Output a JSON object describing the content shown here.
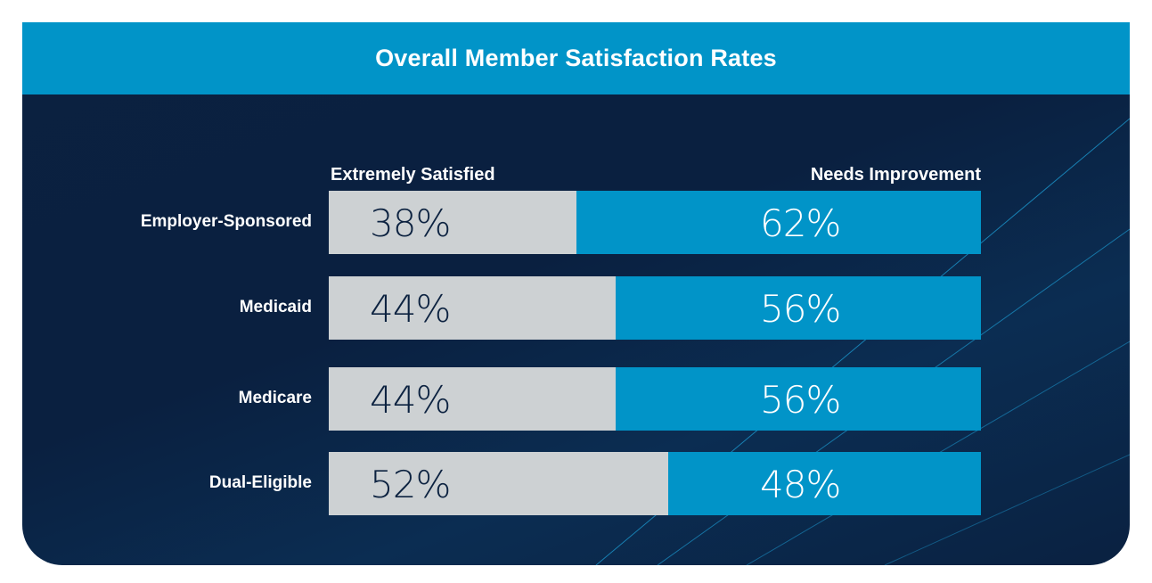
{
  "title": "Overall Member Satisfaction Rates",
  "colors": {
    "header": "#0194c8",
    "background": "#0b2140",
    "satisfied": "#cdd1d3",
    "improvement": "#0194c8",
    "label_dark": "#0c2240",
    "label_light": "#ffffff"
  },
  "columns": {
    "satisfied": "Extremely Satisfied",
    "improvement": "Needs Improvement"
  },
  "chart_data": {
    "type": "bar",
    "orientation": "horizontal",
    "stacked": true,
    "normalized": true,
    "title": "Overall Member Satisfaction Rates",
    "xlabel": "",
    "ylabel": "",
    "categories": [
      "Employer-Sponsored",
      "Medicaid",
      "Medicare",
      "Dual-Eligible"
    ],
    "series": [
      {
        "name": "Extremely Satisfied",
        "values": [
          38,
          44,
          44,
          52
        ],
        "color": "#cdd1d3"
      },
      {
        "name": "Needs Improvement",
        "values": [
          62,
          56,
          56,
          48
        ],
        "color": "#0194c8"
      }
    ],
    "labels": {
      "satisfied": [
        "38%",
        "44%",
        "44%",
        "52%"
      ],
      "improvement": [
        "62%",
        "56%",
        "56%",
        "48%"
      ]
    },
    "xlim": [
      0,
      100
    ],
    "grid": false,
    "legend": "top"
  }
}
